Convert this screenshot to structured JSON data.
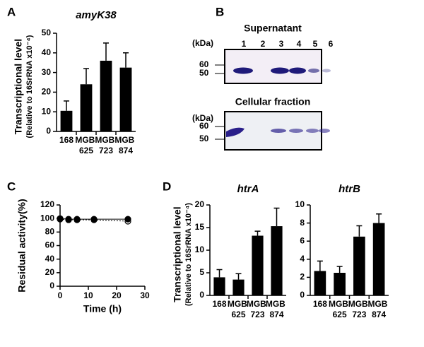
{
  "chart_data": [
    {
      "type": "bar",
      "panel": "A",
      "title": "amyK38",
      "y_label": "Transcriptional level",
      "y_sublabel": "(Relative to 16SrRNA x10⁻⁴)",
      "categories": [
        "168",
        "MGB 625",
        "MGB 723",
        "MGB 874"
      ],
      "values": [
        10.5,
        24,
        36,
        32.5
      ],
      "errors": [
        5,
        8,
        9,
        7.5
      ],
      "color": "#000000",
      "ylim": [
        0,
        50
      ],
      "yticks": [
        0,
        10,
        20,
        30,
        40,
        50
      ]
    },
    {
      "type": "line",
      "panel": "C",
      "x_label": "Time (h)",
      "y_label": "Residual activity(%)",
      "xlim": [
        0,
        30
      ],
      "xticks": [
        0,
        10,
        20,
        30
      ],
      "ylim": [
        0,
        120
      ],
      "yticks": [
        0,
        20,
        40,
        60,
        80,
        100,
        120
      ],
      "series": [
        {
          "color": "#000000",
          "marker": "filled",
          "x": [
            0,
            3,
            6,
            12,
            24
          ],
          "values": [
            100,
            99,
            99,
            99,
            99
          ]
        },
        {
          "color": "#000000",
          "marker": "open",
          "x": [
            0,
            3,
            6,
            12,
            24
          ],
          "values": [
            99,
            98,
            98,
            98,
            96
          ]
        }
      ]
    },
    {
      "type": "bar",
      "panel": "D",
      "title": "htrA",
      "y_label": "Transcriptional level",
      "y_sublabel": "(Relative to 16SrRNA x10⁻⁴)",
      "categories": [
        "168",
        "MGB 625",
        "MGB 723",
        "MGB 874"
      ],
      "values": [
        4,
        3.5,
        13.2,
        15.3
      ],
      "errors": [
        1.7,
        1.3,
        1,
        4
      ],
      "color": "#000000",
      "ylim": [
        0,
        20
      ],
      "yticks": [
        0,
        5,
        10,
        15,
        20
      ]
    },
    {
      "type": "bar",
      "title": "htrB",
      "categories": [
        "168",
        "MGB 625",
        "MGB 723",
        "MGB 874"
      ],
      "values": [
        2.7,
        2.5,
        6.5,
        8
      ],
      "errors": [
        1.1,
        0.7,
        1.2,
        1
      ],
      "color": "#000000",
      "ylim": [
        0,
        10
      ],
      "yticks": [
        0,
        2,
        4,
        6,
        8,
        10
      ]
    }
  ],
  "gel": {
    "panel": "B",
    "top": {
      "title": "Supernatant",
      "unit": "(kDa)",
      "lanes": [
        "1",
        "2",
        "3",
        "4",
        "5",
        "6"
      ],
      "markers": [
        "60",
        "50"
      ]
    },
    "bottom": {
      "title": "Cellular fraction",
      "unit": "(kDa)",
      "markers": [
        "60",
        "50"
      ]
    }
  }
}
